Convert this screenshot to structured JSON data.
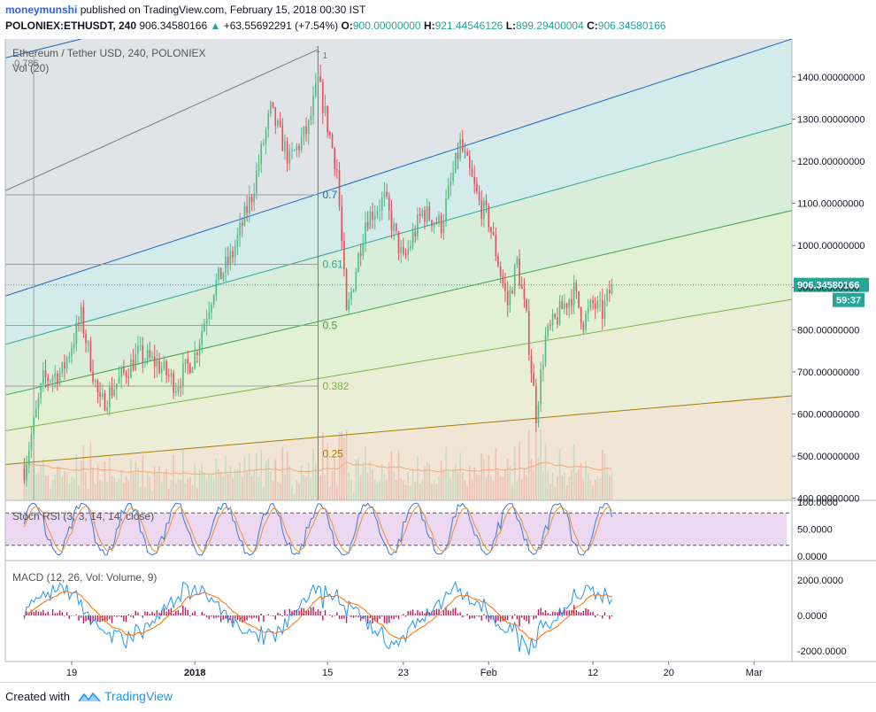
{
  "header": {
    "username": "moneymunshi",
    "published": "published on TradingView.com, February 15, 2018 00:30 IST",
    "symbol": "POLONIEX:ETHUSDT, 240",
    "price": "906.34580166",
    "change_arrow": "▲",
    "change": "+63.55692291 (+7.54%)",
    "o_label": "O:",
    "o_value": "900.00000000",
    "h_label": "H:",
    "h_value": "921.44546126",
    "l_label": "L:",
    "l_value": "899.29400004",
    "c_label": "C:",
    "c_value": "906.34580166"
  },
  "footer": {
    "created_with": "Created with",
    "brand": "TradingView",
    "logo_icon": "tradingview-logo-icon"
  },
  "colors": {
    "up": "#53b987",
    "down": "#eb4d5c",
    "volume": "#f5a676",
    "stoch_k": "#3c78d8",
    "stoch_d": "#e69138",
    "macd_line": "#2196f3",
    "signal_line": "#ff6d00",
    "hist": "#c2185b"
  },
  "chart_data": [
    {
      "type": "candlestick",
      "title": "Ethereum / Tether USD, 240, POLONIEX",
      "ylim": [
        395,
        1490
      ],
      "y_ticks": [
        400,
        500,
        600,
        700,
        800,
        900,
        1000,
        1100,
        1200,
        1300,
        1400
      ],
      "y_tick_labels": [
        "400.00000000",
        "500.00000000",
        "600.00000000",
        "700.00000000",
        "800.00000000",
        "900.00000000",
        "1000.00000000",
        "1100.00000000",
        "1200.00000000",
        "1300.00000000",
        "1400.00000000"
      ],
      "x_ticks": [
        "19",
        "2018",
        "15",
        "23",
        "Feb",
        "12",
        "20",
        "Mar"
      ],
      "last_price_label": "906.34580166",
      "countdown_label": "59:37",
      "price_path": [
        {
          "date": "2017-12-14",
          "price": 470
        },
        {
          "date": "2017-12-16",
          "price": 680
        },
        {
          "date": "2017-12-18",
          "price": 700
        },
        {
          "date": "2017-12-20",
          "price": 830
        },
        {
          "date": "2017-12-22",
          "price": 620
        },
        {
          "date": "2017-12-24",
          "price": 680
        },
        {
          "date": "2017-12-26",
          "price": 740
        },
        {
          "date": "2017-12-28",
          "price": 720
        },
        {
          "date": "2017-12-30",
          "price": 670
        },
        {
          "date": "2018-01-01",
          "price": 740
        },
        {
          "date": "2018-01-03",
          "price": 900
        },
        {
          "date": "2018-01-05",
          "price": 980
        },
        {
          "date": "2018-01-07",
          "price": 1120
        },
        {
          "date": "2018-01-09",
          "price": 1320
        },
        {
          "date": "2018-01-11",
          "price": 1200
        },
        {
          "date": "2018-01-13",
          "price": 1280
        },
        {
          "date": "2018-01-14",
          "price": 1390
        },
        {
          "date": "2018-01-16",
          "price": 1180
        },
        {
          "date": "2018-01-17",
          "price": 830
        },
        {
          "date": "2018-01-19",
          "price": 1060
        },
        {
          "date": "2018-01-21",
          "price": 1110
        },
        {
          "date": "2018-01-23",
          "price": 960
        },
        {
          "date": "2018-01-25",
          "price": 1080
        },
        {
          "date": "2018-01-27",
          "price": 1050
        },
        {
          "date": "2018-01-29",
          "price": 1240
        },
        {
          "date": "2018-01-31",
          "price": 1100
        },
        {
          "date": "2018-02-01",
          "price": 1060
        },
        {
          "date": "2018-02-03",
          "price": 860
        },
        {
          "date": "2018-02-04",
          "price": 960
        },
        {
          "date": "2018-02-05",
          "price": 820
        },
        {
          "date": "2018-02-06",
          "price": 600
        },
        {
          "date": "2018-02-07",
          "price": 780
        },
        {
          "date": "2018-02-09",
          "price": 860
        },
        {
          "date": "2018-02-10",
          "price": 890
        },
        {
          "date": "2018-02-11",
          "price": 820
        },
        {
          "date": "2018-02-12",
          "price": 860
        },
        {
          "date": "2018-02-13",
          "price": 840
        },
        {
          "date": "2018-02-14",
          "price": 906.35
        }
      ],
      "fib_levels": [
        {
          "label": "0.25",
          "value": 505
        },
        {
          "label": "0.382",
          "value": 666
        },
        {
          "label": "0.5",
          "value": 810
        },
        {
          "label": "0.618",
          "value": 955
        },
        {
          "label": "0.786",
          "value": 1120
        },
        {
          "label": "1",
          "value": 1390
        }
      ],
      "fib_labels_visible": [
        "0.7",
        "0.61",
        "0.5",
        "0.382",
        "0.25",
        "1",
        "1",
        "0.786"
      ]
    },
    {
      "type": "bar",
      "title": "Vol (20)"
    },
    {
      "type": "line",
      "title": "Stoch RSI (3, 3, 14, 14, close)",
      "ylim": [
        0,
        100
      ],
      "y_ticks": [
        0,
        50,
        100
      ],
      "y_tick_labels": [
        "0.0000",
        "50.0000",
        "100.0000"
      ],
      "bands": [
        20,
        80
      ]
    },
    {
      "type": "line",
      "title": "MACD (12, 26, Vol: Volume, 9)",
      "ylim": [
        -2600,
        3100
      ],
      "y_ticks": [
        -2000,
        0,
        2000
      ],
      "y_tick_labels": [
        "-2000.0000",
        "0.0000",
        "2000.0000"
      ]
    }
  ]
}
